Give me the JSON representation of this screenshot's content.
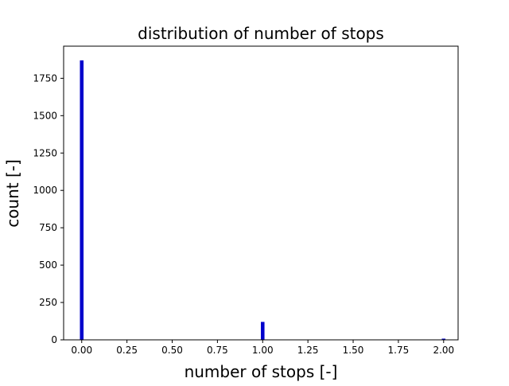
{
  "chart_data": {
    "type": "bar",
    "title": "distribution of number of stops",
    "xlabel": "number of stops [-]",
    "ylabel": "count [-]",
    "x": [
      0,
      1,
      2
    ],
    "values": [
      1870,
      120,
      8
    ],
    "bar_width": 0.02,
    "xlim": [
      -0.1,
      2.08
    ],
    "ylim": [
      0,
      1965
    ],
    "xticks": [
      0.0,
      0.25,
      0.5,
      0.75,
      1.0,
      1.25,
      1.5,
      1.75,
      2.0
    ],
    "xtick_labels": [
      "0.00",
      "0.25",
      "0.50",
      "0.75",
      "1.00",
      "1.25",
      "1.50",
      "1.75",
      "2.00"
    ],
    "yticks": [
      0,
      250,
      500,
      750,
      1000,
      1250,
      1500,
      1750
    ],
    "ytick_labels": [
      "0",
      "250",
      "500",
      "750",
      "1000",
      "1250",
      "1500",
      "1750"
    ],
    "grid": false,
    "legend": "none",
    "bar_color": "#0000cc"
  }
}
